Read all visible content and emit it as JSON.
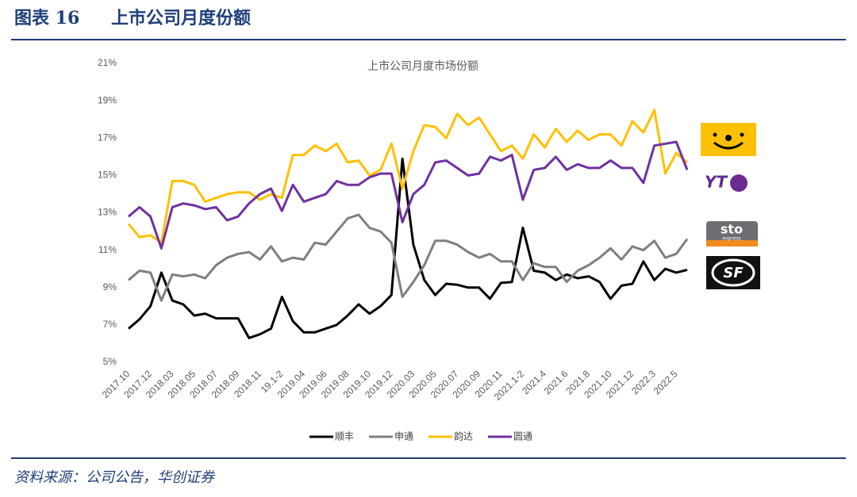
{
  "header": {
    "label": "图表 16",
    "title": "上市公司月度份额"
  },
  "chart_data": {
    "type": "line",
    "title": "上市公司月度市场份额",
    "categories": [
      "2017.10",
      null,
      "2017.12",
      null,
      "2018.03",
      null,
      "2018.05",
      null,
      "2018.07",
      null,
      "2018.09",
      null,
      "2018.11",
      null,
      "19.1-2",
      null,
      "2019.04",
      null,
      "2019.06",
      null,
      "2019.08",
      null,
      "2019.10",
      null,
      "2019.12",
      null,
      "2020.03",
      null,
      "2020.05",
      null,
      "2020.07",
      null,
      "2020.09",
      null,
      "2020.11",
      null,
      "2021.1-2",
      null,
      "2021.4",
      null,
      "2021.6",
      null,
      "2021.8",
      null,
      "2021.10",
      null,
      "2021.12",
      null,
      "2022.3",
      null,
      "2022.5",
      null
    ],
    "series": [
      {
        "name": "顺丰",
        "color": "#000000",
        "values": [
          6.8,
          7.3,
          8.0,
          9.8,
          8.3,
          8.1,
          7.5,
          7.6,
          7.35,
          7.35,
          7.35,
          6.3,
          6.5,
          6.8,
          8.5,
          7.2,
          6.6,
          6.6,
          6.8,
          7.0,
          7.5,
          8.1,
          7.6,
          8.0,
          8.6,
          15.9,
          11.3,
          9.4,
          8.6,
          9.2,
          9.15,
          9.0,
          9.0,
          8.4,
          9.25,
          9.3,
          12.2,
          9.9,
          9.8,
          9.4,
          9.7,
          9.5,
          9.6,
          9.3,
          8.4,
          9.1,
          9.2,
          10.4,
          9.4,
          10.0,
          9.8,
          9.95
        ]
      },
      {
        "name": "申通",
        "color": "#7f7f7f",
        "values": [
          9.4,
          9.9,
          9.8,
          8.3,
          9.7,
          9.6,
          9.7,
          9.5,
          10.2,
          10.6,
          10.8,
          10.9,
          10.5,
          11.2,
          10.4,
          10.6,
          10.5,
          11.4,
          11.3,
          12.0,
          12.7,
          12.9,
          12.2,
          12.0,
          11.4,
          8.5,
          9.3,
          10.2,
          11.5,
          11.5,
          11.3,
          10.9,
          10.6,
          10.8,
          10.4,
          10.4,
          9.4,
          10.3,
          10.1,
          10.1,
          9.3,
          9.9,
          10.2,
          10.6,
          11.1,
          10.5,
          11.2,
          11.0,
          11.5,
          10.6,
          10.8,
          11.6
        ]
      },
      {
        "name": "韵达",
        "color": "#ffc000",
        "values": [
          12.4,
          11.7,
          11.8,
          11.4,
          14.7,
          14.7,
          14.5,
          13.6,
          13.8,
          14.0,
          14.1,
          14.1,
          13.7,
          14.0,
          13.8,
          16.1,
          16.1,
          16.6,
          16.3,
          16.7,
          15.7,
          15.8,
          15.0,
          15.3,
          16.7,
          14.3,
          16.3,
          17.7,
          17.6,
          17.0,
          18.3,
          17.7,
          18.1,
          17.2,
          16.3,
          16.6,
          15.9,
          17.2,
          16.5,
          17.5,
          16.8,
          17.4,
          16.9,
          17.2,
          17.2,
          16.6,
          17.9,
          17.3,
          18.5,
          15.1,
          16.2,
          15.7
        ]
      },
      {
        "name": "圆通",
        "color": "#7030a0",
        "values": [
          12.8,
          13.3,
          12.8,
          11.1,
          13.3,
          13.5,
          13.4,
          13.2,
          13.3,
          12.6,
          12.8,
          13.5,
          14.0,
          14.3,
          13.1,
          14.5,
          13.6,
          13.8,
          14.0,
          14.7,
          14.5,
          14.5,
          14.9,
          15.1,
          15.1,
          12.5,
          14.0,
          14.5,
          15.7,
          15.8,
          15.4,
          15.0,
          15.1,
          16.0,
          15.8,
          16.1,
          13.7,
          15.3,
          15.4,
          16.0,
          15.3,
          15.6,
          15.4,
          15.4,
          15.8,
          15.4,
          15.4,
          14.6,
          16.6,
          16.7,
          16.8,
          15.3
        ]
      }
    ],
    "ylim": [
      5,
      21
    ],
    "yticks": [
      {
        "value": 5,
        "label": "5%"
      },
      {
        "value": 7,
        "label": "7%"
      },
      {
        "value": 9,
        "label": "9%"
      },
      {
        "value": 11,
        "label": "11%"
      },
      {
        "value": 13,
        "label": "13%"
      },
      {
        "value": 15,
        "label": "15%"
      },
      {
        "value": 17,
        "label": "17%"
      },
      {
        "value": 19,
        "label": "19%"
      },
      {
        "value": 21,
        "label": "21%"
      }
    ],
    "grid": false,
    "legend": "bottom"
  },
  "logos": [
    {
      "text": "YT"
    },
    {
      "text": "sto"
    },
    {
      "text": "express"
    },
    {
      "text": "SF"
    }
  ],
  "footer": {
    "source": "资料来源：公司公告，华创证券"
  }
}
